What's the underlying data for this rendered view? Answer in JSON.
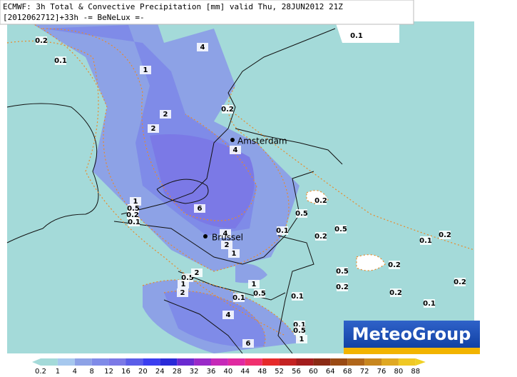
{
  "header": {
    "line1": "ECMWF: 3h Total & Convective Precipitation [mm] valid Thu, 28JUN2012 21Z",
    "line2": "[2012062712]+33h -= BeNeLux =-"
  },
  "cities": [
    {
      "name": "Amsterdam"
    },
    {
      "name": "Brussel"
    }
  ],
  "contour_labels": [
    "0.2",
    "0.1",
    "4",
    "1",
    "2",
    "2",
    "0.1",
    "0.2",
    "4",
    "1",
    "0.5",
    "0.2",
    "0.1",
    "6",
    "0.2",
    "0.5",
    "0.1",
    "4",
    "2",
    "1",
    "0.2",
    "0.5",
    "0.1",
    "0.2",
    "0.5",
    "0.2",
    "0.2",
    "0.2",
    "0.2",
    "0.1",
    "0.5",
    "2",
    "1",
    "2",
    "1",
    "0.5",
    "0.1",
    "0.1",
    "4",
    "0.1",
    "0.5",
    "1",
    "6"
  ],
  "legend": {
    "labels": [
      "0.2",
      "1",
      "4",
      "8",
      "12",
      "16",
      "20",
      "24",
      "28",
      "32",
      "36",
      "40",
      "44",
      "48",
      "52",
      "56",
      "60",
      "64",
      "68",
      "72",
      "76",
      "80",
      "88"
    ]
  },
  "logo": "MeteoGroup"
}
